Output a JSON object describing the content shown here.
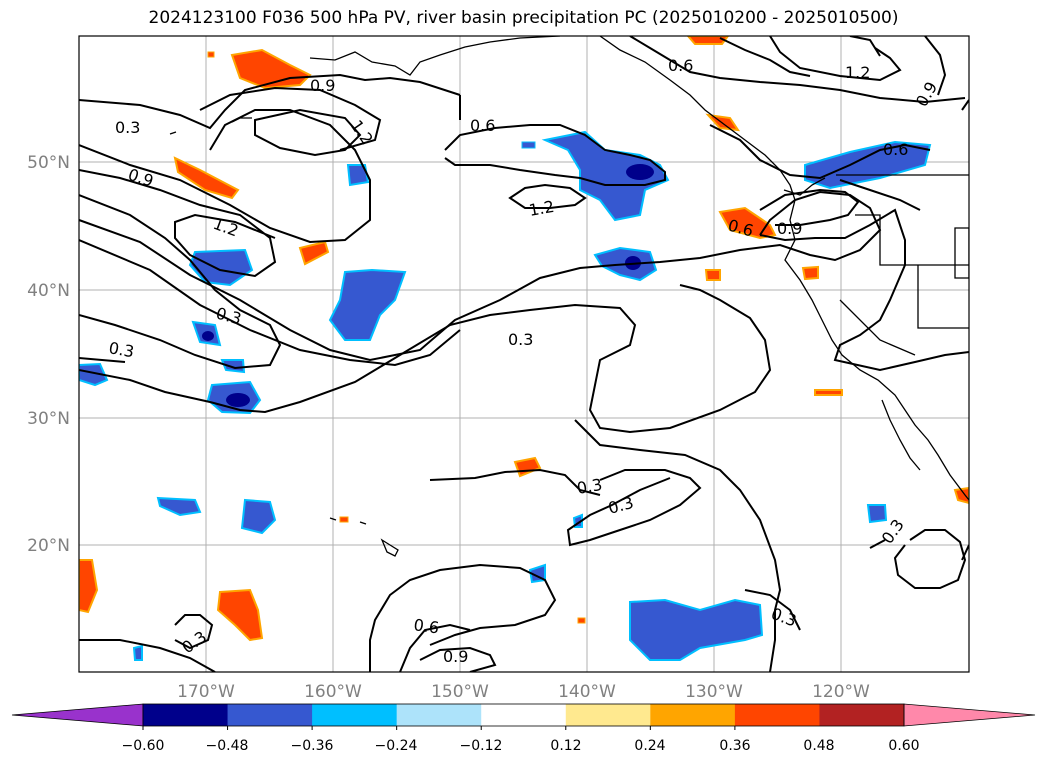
{
  "title": "2024123100 F036 500 hPa PV, river basin precipitation PC (2025010200 - 2025010500)",
  "map": {
    "lat_labels": [
      "50°N",
      "40°N",
      "30°N",
      "20°N"
    ],
    "lon_labels": [
      "170°W",
      "160°W",
      "150°W",
      "140°W",
      "130°W",
      "120°W"
    ],
    "gridlines": true
  },
  "contours": {
    "labels": [
      "0.3",
      "0.9",
      "1.2",
      "0.9",
      "0.6",
      "1.2",
      "0.6",
      "1.2",
      "0.9",
      "0.6",
      "0.9",
      "0.6",
      "0.3",
      "1.2",
      "0.3",
      "0.3",
      "0.3",
      "0.3",
      "0.6",
      "0.9",
      "0.3",
      "0.3",
      "0.3"
    ]
  },
  "colorbar": {
    "ticks": [
      "−0.60",
      "−0.48",
      "−0.36",
      "−0.24",
      "−0.12",
      "0.12",
      "0.24",
      "0.36",
      "0.48",
      "0.60"
    ],
    "colors": [
      "#9932cc",
      "#00008b",
      "#3658d0",
      "#00bfff",
      "#ade3fa",
      "#ffffff",
      "#ffe98f",
      "#ffa500",
      "#ff4500",
      "#b22222",
      "#ff88aa"
    ],
    "extend": "both"
  }
}
